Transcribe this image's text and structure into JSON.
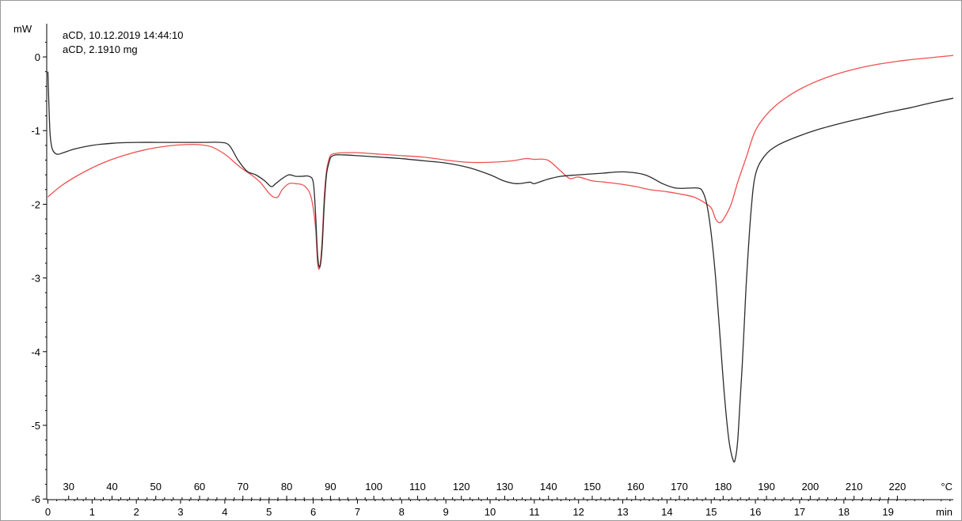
{
  "info": {
    "line1": "aCD, 10.12.2019 14:44:10",
    "line2": "aCD, 2.1910 mg"
  },
  "colors": {
    "frame": "#9a9a9a",
    "axis": "#000000",
    "black_curve": "#2b2b2b",
    "red_curve": "#f05050"
  },
  "chart_data": {
    "type": "line",
    "ylabel": "mW",
    "x_unit": "min",
    "temp_unit": "°C",
    "ylim": [
      -6,
      0.3
    ],
    "xlim": [
      -0.05,
      20.5
    ],
    "grid": false,
    "legend": "none",
    "y_ticks": [
      0,
      -1,
      -2,
      -3,
      -4,
      -5,
      -6
    ],
    "y_tick_labels": [
      "0",
      "-1",
      "-2",
      "-3",
      "-4",
      "-5",
      "-6"
    ],
    "x_ticks": [
      0,
      1,
      2,
      3,
      4,
      5,
      6,
      7,
      8,
      9,
      10,
      11,
      12,
      13,
      14,
      15,
      16,
      17,
      18,
      19
    ],
    "x_tick_labels": [
      "0",
      "1",
      "2",
      "3",
      "4",
      "5",
      "6",
      "7",
      "8",
      "9",
      "10",
      "11",
      "12",
      "13",
      "14",
      "15",
      "16",
      "17",
      "18",
      "19"
    ],
    "temp_ticks": [
      {
        "t": 0.47,
        "label": "30"
      },
      {
        "t": 1.45,
        "label": "40"
      },
      {
        "t": 2.44,
        "label": "50"
      },
      {
        "t": 3.43,
        "label": "60"
      },
      {
        "t": 4.41,
        "label": "70"
      },
      {
        "t": 5.4,
        "label": "80"
      },
      {
        "t": 6.39,
        "label": "90"
      },
      {
        "t": 7.37,
        "label": "100"
      },
      {
        "t": 8.36,
        "label": "110"
      },
      {
        "t": 9.35,
        "label": "120"
      },
      {
        "t": 10.33,
        "label": "130"
      },
      {
        "t": 11.32,
        "label": "140"
      },
      {
        "t": 12.31,
        "label": "150"
      },
      {
        "t": 13.29,
        "label": "160"
      },
      {
        "t": 14.28,
        "label": "170"
      },
      {
        "t": 15.27,
        "label": "180"
      },
      {
        "t": 16.25,
        "label": "190"
      },
      {
        "t": 17.24,
        "label": "200"
      },
      {
        "t": 18.23,
        "label": "210"
      },
      {
        "t": 19.21,
        "label": "220"
      }
    ],
    "series": [
      {
        "color": "#2b2b2b",
        "x": [
          0,
          0.02,
          0.05,
          0.1,
          0.2,
          0.35,
          0.6,
          1,
          1.5,
          2,
          2.5,
          3,
          3.5,
          3.9,
          4.1,
          4.3,
          4.5,
          4.7,
          4.9,
          5.05,
          5.15,
          5.3,
          5.45,
          5.6,
          5.75,
          5.9,
          6.0,
          6.05,
          6.1,
          6.15,
          6.2,
          6.25,
          6.3,
          6.35,
          6.4,
          6.5,
          6.7,
          7,
          7.5,
          8,
          8.5,
          9,
          9.5,
          10,
          10.3,
          10.6,
          10.9,
          11,
          11.3,
          11.6,
          12,
          12.5,
          13,
          13.5,
          13.9,
          14.2,
          14.5,
          14.7,
          14.8,
          14.9,
          15.0,
          15.1,
          15.2,
          15.3,
          15.4,
          15.5,
          15.55,
          15.6,
          15.65,
          15.7,
          15.75,
          15.8,
          15.9,
          16.0,
          16.2,
          16.5,
          17,
          17.5,
          18,
          18.5,
          19,
          19.5,
          20,
          20.5
        ],
        "y": [
          -0.2,
          -0.6,
          -1.05,
          -1.25,
          -1.32,
          -1.3,
          -1.25,
          -1.2,
          -1.17,
          -1.16,
          -1.16,
          -1.16,
          -1.16,
          -1.16,
          -1.2,
          -1.4,
          -1.55,
          -1.6,
          -1.68,
          -1.76,
          -1.72,
          -1.65,
          -1.6,
          -1.62,
          -1.62,
          -1.62,
          -1.7,
          -2.1,
          -2.7,
          -2.85,
          -2.6,
          -2.0,
          -1.6,
          -1.45,
          -1.36,
          -1.33,
          -1.33,
          -1.34,
          -1.36,
          -1.38,
          -1.41,
          -1.44,
          -1.5,
          -1.6,
          -1.68,
          -1.72,
          -1.7,
          -1.72,
          -1.66,
          -1.62,
          -1.6,
          -1.58,
          -1.56,
          -1.6,
          -1.72,
          -1.78,
          -1.78,
          -1.78,
          -1.82,
          -2.0,
          -2.4,
          -3.0,
          -3.8,
          -4.6,
          -5.2,
          -5.48,
          -5.44,
          -5.2,
          -4.7,
          -4.2,
          -3.6,
          -3.0,
          -2.1,
          -1.6,
          -1.35,
          -1.2,
          -1.07,
          -0.97,
          -0.89,
          -0.82,
          -0.75,
          -0.69,
          -0.62,
          -0.56
        ]
      },
      {
        "color": "#f05050",
        "x": [
          0,
          0.3,
          0.7,
          1.2,
          1.7,
          2.2,
          2.7,
          3.1,
          3.4,
          3.7,
          4.0,
          4.2,
          4.4,
          4.6,
          4.8,
          5.0,
          5.1,
          5.2,
          5.3,
          5.45,
          5.6,
          5.8,
          5.95,
          6.05,
          6.1,
          6.15,
          6.2,
          6.25,
          6.3,
          6.35,
          6.4,
          6.5,
          6.7,
          7,
          7.5,
          8,
          8.5,
          9,
          9.5,
          10,
          10.5,
          10.8,
          11.0,
          11.3,
          11.6,
          11.8,
          12,
          12.3,
          12.6,
          13,
          13.3,
          13.6,
          14,
          14.3,
          14.6,
          14.8,
          15.0,
          15.1,
          15.2,
          15.3,
          15.45,
          15.6,
          15.8,
          16.0,
          16.3,
          16.7,
          17.2,
          17.8,
          18.5,
          19.2,
          19.8,
          20.5
        ],
        "y": [
          -1.9,
          -1.75,
          -1.6,
          -1.45,
          -1.34,
          -1.26,
          -1.21,
          -1.19,
          -1.19,
          -1.22,
          -1.32,
          -1.42,
          -1.52,
          -1.6,
          -1.7,
          -1.85,
          -1.9,
          -1.9,
          -1.8,
          -1.72,
          -1.72,
          -1.75,
          -1.9,
          -2.3,
          -2.8,
          -2.85,
          -2.5,
          -1.9,
          -1.55,
          -1.4,
          -1.33,
          -1.31,
          -1.3,
          -1.3,
          -1.32,
          -1.34,
          -1.36,
          -1.4,
          -1.43,
          -1.43,
          -1.41,
          -1.38,
          -1.39,
          -1.4,
          -1.55,
          -1.65,
          -1.63,
          -1.68,
          -1.7,
          -1.73,
          -1.76,
          -1.8,
          -1.83,
          -1.86,
          -1.9,
          -1.96,
          -2.05,
          -2.2,
          -2.25,
          -2.18,
          -2.0,
          -1.7,
          -1.35,
          -1.0,
          -0.75,
          -0.55,
          -0.38,
          -0.24,
          -0.13,
          -0.06,
          -0.02,
          0.02
        ]
      }
    ]
  }
}
